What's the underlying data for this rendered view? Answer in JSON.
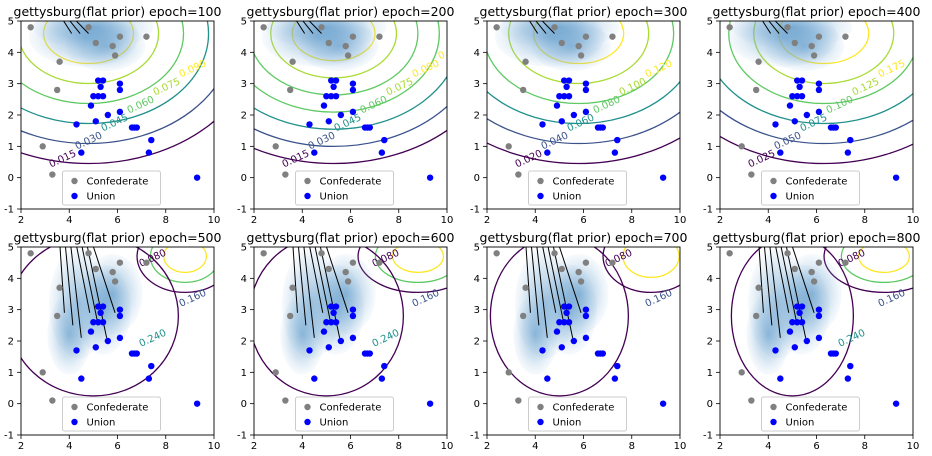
{
  "chart_data": [
    {
      "type": "scatter",
      "title": "gettysburg(flat prior) epoch=100",
      "contour_labels": [
        "0.015",
        "0.030",
        "0.045",
        "0.060",
        "0.075",
        "0.090"
      ]
    },
    {
      "type": "scatter",
      "title": "gettysburg(flat prior) epoch=200",
      "contour_labels": [
        "0.015",
        "0.030",
        "0.045",
        "0.060",
        "0.075",
        "0.090",
        "0.105"
      ]
    },
    {
      "type": "scatter",
      "title": "gettysburg(flat prior) epoch=300",
      "contour_labels": [
        "0.020",
        "0.040",
        "0.060",
        "0.080",
        "0.100",
        "0.120"
      ]
    },
    {
      "type": "scatter",
      "title": "gettysburg(flat prior) epoch=400",
      "contour_labels": [
        "0.025",
        "0.050",
        "0.075",
        "0.100",
        "0.125",
        "0.175"
      ]
    },
    {
      "type": "scatter",
      "title": "gettysburg(flat prior) epoch=500",
      "contour_labels": [
        "0.080",
        "0.160",
        "0.240"
      ]
    },
    {
      "type": "scatter",
      "title": "gettysburg(flat prior) epoch=600",
      "contour_labels": [
        "0.080",
        "0.160",
        "0.240"
      ]
    },
    {
      "type": "scatter",
      "title": "gettysburg(flat prior) epoch=700",
      "contour_labels": [
        "0.080",
        "0.160"
      ]
    },
    {
      "type": "scatter",
      "title": "gettysburg(flat prior) epoch=800",
      "contour_labels": [
        "0.080",
        "0.160",
        "0.240"
      ]
    }
  ],
  "shared": {
    "xlim": [
      2,
      10
    ],
    "ylim": [
      -1,
      5
    ],
    "xticks": [
      2,
      4,
      6,
      8,
      10
    ],
    "yticks": [
      -1,
      0,
      1,
      2,
      3,
      4,
      5
    ],
    "legend": {
      "placement": "lower center",
      "entries": [
        {
          "label": "Confederate",
          "color": "#808080"
        },
        {
          "label": "Union",
          "color": "#0000ff"
        }
      ]
    },
    "series": [
      {
        "name": "Confederate",
        "color": "#808080",
        "points": [
          [
            2.4,
            4.8
          ],
          [
            3.6,
            3.7
          ],
          [
            5.1,
            4.3
          ],
          [
            5.9,
            3.9
          ],
          [
            7.2,
            4.5
          ],
          [
            3.5,
            2.8
          ],
          [
            2.9,
            1.0
          ],
          [
            3.3,
            0.1
          ],
          [
            4.8,
            4.8
          ],
          [
            6.1,
            4.5
          ],
          [
            5.8,
            4.2
          ]
        ]
      },
      {
        "name": "Union",
        "color": "#0000ff",
        "points": [
          [
            5.2,
            3.1
          ],
          [
            5.4,
            3.1
          ],
          [
            5.3,
            2.9
          ],
          [
            5.0,
            2.6
          ],
          [
            5.2,
            2.6
          ],
          [
            5.4,
            2.6
          ],
          [
            4.9,
            2.3
          ],
          [
            5.6,
            2.0
          ],
          [
            6.1,
            3.0
          ],
          [
            6.1,
            2.8
          ],
          [
            6.1,
            2.1
          ],
          [
            6.6,
            1.6
          ],
          [
            6.7,
            1.6
          ],
          [
            6.8,
            1.6
          ],
          [
            4.3,
            1.7
          ],
          [
            5.1,
            1.8
          ],
          [
            7.4,
            1.2
          ],
          [
            7.3,
            0.8
          ],
          [
            4.5,
            0.8
          ],
          [
            9.3,
            0.0
          ]
        ]
      }
    ]
  }
}
